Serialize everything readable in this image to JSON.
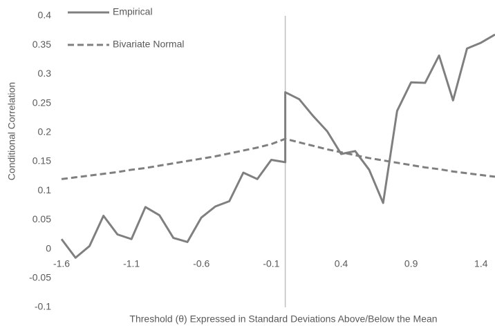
{
  "chart_data": {
    "type": "line",
    "y_label": "Conditional Correlation",
    "x_label": "Threshold (θ) Expressed in Standard Deviations Above/Below the Mean",
    "xlim": [
      -1.6,
      1.5
    ],
    "ylim": [
      -0.1,
      0.4
    ],
    "xticks": [
      -1.6,
      -1.1,
      -0.6,
      -0.1,
      0.4,
      0.9,
      1.4
    ],
    "yticks": [
      0.4,
      0.35,
      0.3,
      0.25,
      0.2,
      0.15,
      0.1,
      0.05,
      0,
      -0.05,
      -0.1
    ],
    "vline": 0,
    "series": [
      {
        "name": "Empirical",
        "color": "#7f7f7f",
        "dash": "solid",
        "x": [
          -1.6,
          -1.5,
          -1.4,
          -1.3,
          -1.2,
          -1.1,
          -1.0,
          -0.9,
          -0.8,
          -0.7,
          -0.6,
          -0.5,
          -0.4,
          -0.3,
          -0.2,
          -0.1,
          0,
          0,
          0.1,
          0.2,
          0.3,
          0.4,
          0.5,
          0.6,
          0.7,
          0.8,
          0.9,
          1.0,
          1.1,
          1.2,
          1.3,
          1.4,
          1.5
        ],
        "values": [
          0.017,
          -0.015,
          0.005,
          0.057,
          0.025,
          0.017,
          0.072,
          0.058,
          0.019,
          0.012,
          0.054,
          0.073,
          0.082,
          0.131,
          0.12,
          0.153,
          0.149,
          0.269,
          0.257,
          0.228,
          0.202,
          0.163,
          0.168,
          0.136,
          0.079,
          0.237,
          0.286,
          0.285,
          0.332,
          0.255,
          0.344,
          0.354,
          0.368
        ]
      },
      {
        "name": "Bivariate Normal",
        "color": "#7f7f7f",
        "dash": "dashed",
        "x": [
          -1.6,
          -1.5,
          -1.4,
          -1.3,
          -1.2,
          -1.1,
          -1.0,
          -0.9,
          -0.8,
          -0.7,
          -0.6,
          -0.5,
          -0.4,
          -0.3,
          -0.2,
          -0.1,
          0,
          0.1,
          0.2,
          0.3,
          0.4,
          0.5,
          0.6,
          0.7,
          0.8,
          0.9,
          1.0,
          1.1,
          1.2,
          1.3,
          1.4,
          1.5
        ],
        "values": [
          0.12,
          0.123,
          0.126,
          0.129,
          0.132,
          0.136,
          0.139,
          0.143,
          0.147,
          0.151,
          0.155,
          0.159,
          0.164,
          0.169,
          0.174,
          0.18,
          0.189,
          0.183,
          0.177,
          0.171,
          0.166,
          0.161,
          0.156,
          0.152,
          0.148,
          0.144,
          0.14,
          0.137,
          0.133,
          0.13,
          0.127,
          0.124
        ]
      }
    ]
  }
}
